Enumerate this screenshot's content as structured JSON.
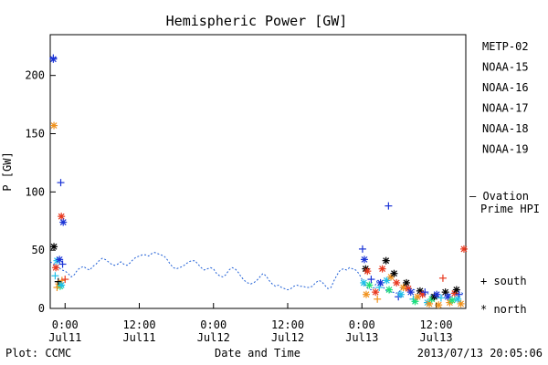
{
  "chart_data": {
    "type": "scatter",
    "title": "Hemispheric Power [GW]",
    "ylabel": "P [GW]",
    "xlabel": "Date and Time",
    "ylim": [
      0,
      235
    ],
    "yticks": [
      0,
      50,
      100,
      150,
      200
    ],
    "xlim_hours": [
      -2.4,
      64.8
    ],
    "xticks": [
      {
        "hour": 0,
        "line1": "0:00",
        "line2": "Jul11"
      },
      {
        "hour": 12,
        "line1": "12:00",
        "line2": "Jul11"
      },
      {
        "hour": 24,
        "line1": "0:00",
        "line2": "Jul12"
      },
      {
        "hour": 36,
        "line1": "12:00",
        "line2": "Jul12"
      },
      {
        "hour": 48,
        "line1": "0:00",
        "line2": "Jul13"
      },
      {
        "hour": 60,
        "line1": "12:00",
        "line2": "Jul13"
      }
    ],
    "satellites": [
      {
        "name": "METP-02",
        "color": "#000000"
      },
      {
        "name": "NOAA-15",
        "color": "#1a33d6"
      },
      {
        "name": "NOAA-16",
        "color": "#1fbfe8"
      },
      {
        "name": "NOAA-17",
        "color": "#1fe07a"
      },
      {
        "name": "NOAA-18",
        "color": "#f0921e"
      },
      {
        "name": "NOAA-19",
        "color": "#e8381e"
      }
    ],
    "model": {
      "name_line1": "— Ovation",
      "name_line2": "Prime HPI",
      "color": "#1f5fd6"
    },
    "marker_legend": {
      "south": "+  south",
      "north": "*  north"
    },
    "model_series": [
      [
        -2.4,
        40
      ],
      [
        -1.5,
        37
      ],
      [
        -0.5,
        33
      ],
      [
        0,
        32
      ],
      [
        0.5,
        30
      ],
      [
        1,
        27
      ],
      [
        1.5,
        29
      ],
      [
        2,
        33
      ],
      [
        2.5,
        35
      ],
      [
        3,
        36
      ],
      [
        3.5,
        34
      ],
      [
        4,
        33
      ],
      [
        4.5,
        36
      ],
      [
        5,
        38
      ],
      [
        5.5,
        41
      ],
      [
        6,
        43
      ],
      [
        6.5,
        42
      ],
      [
        7,
        40
      ],
      [
        7.5,
        38
      ],
      [
        8,
        37
      ],
      [
        8.5,
        38
      ],
      [
        9,
        40
      ],
      [
        9.5,
        38
      ],
      [
        10,
        37
      ],
      [
        10.5,
        39
      ],
      [
        11,
        42
      ],
      [
        11.5,
        44
      ],
      [
        12,
        45
      ],
      [
        12.5,
        46
      ],
      [
        13,
        46
      ],
      [
        13.5,
        45
      ],
      [
        14,
        47
      ],
      [
        14.5,
        48
      ],
      [
        15,
        47
      ],
      [
        15.5,
        46
      ],
      [
        16,
        45
      ],
      [
        16.5,
        42
      ],
      [
        17,
        38
      ],
      [
        17.5,
        35
      ],
      [
        18,
        34
      ],
      [
        18.5,
        35
      ],
      [
        19,
        36
      ],
      [
        19.5,
        38
      ],
      [
        20,
        40
      ],
      [
        20.5,
        41
      ],
      [
        21,
        41
      ],
      [
        21.5,
        38
      ],
      [
        22,
        35
      ],
      [
        22.5,
        33
      ],
      [
        23,
        34
      ],
      [
        23.5,
        35
      ],
      [
        24,
        34
      ],
      [
        24.5,
        30
      ],
      [
        25,
        28
      ],
      [
        25.5,
        27
      ],
      [
        26,
        29
      ],
      [
        26.5,
        33
      ],
      [
        27,
        35
      ],
      [
        27.5,
        34
      ],
      [
        28,
        31
      ],
      [
        28.5,
        27
      ],
      [
        29,
        24
      ],
      [
        29.5,
        22
      ],
      [
        30,
        21
      ],
      [
        30.5,
        22
      ],
      [
        31,
        24
      ],
      [
        31.5,
        27
      ],
      [
        32,
        30
      ],
      [
        32.5,
        28
      ],
      [
        33,
        24
      ],
      [
        33.5,
        21
      ],
      [
        34,
        19
      ],
      [
        34.5,
        20
      ],
      [
        35,
        18
      ],
      [
        35.5,
        17
      ],
      [
        36,
        16
      ],
      [
        36.5,
        17
      ],
      [
        37,
        19
      ],
      [
        37.5,
        20
      ],
      [
        38,
        19
      ],
      [
        38.5,
        19
      ],
      [
        39,
        18
      ],
      [
        39.5,
        18
      ],
      [
        40,
        19
      ],
      [
        40.5,
        22
      ],
      [
        41,
        24
      ],
      [
        41.5,
        23
      ],
      [
        42,
        20
      ],
      [
        42.5,
        17
      ],
      [
        43,
        18
      ],
      [
        43.5,
        24
      ],
      [
        44,
        29
      ],
      [
        44.5,
        33
      ],
      [
        45,
        34
      ],
      [
        45.5,
        33
      ],
      [
        46,
        35
      ],
      [
        46.5,
        34
      ],
      [
        47,
        33
      ],
      [
        47.5,
        30
      ],
      [
        48,
        25
      ],
      [
        48.5,
        20
      ],
      [
        49,
        17
      ],
      [
        49.5,
        16
      ],
      [
        50,
        18
      ],
      [
        50.5,
        24
      ],
      [
        51,
        22
      ],
      [
        51.5,
        18
      ],
      [
        52,
        15
      ],
      [
        52.5,
        14
      ],
      [
        53,
        14
      ],
      [
        53.5,
        13
      ],
      [
        54,
        14
      ],
      [
        54.5,
        18
      ],
      [
        55,
        20
      ],
      [
        55.5,
        18
      ],
      [
        56,
        17
      ],
      [
        56.5,
        16
      ],
      [
        57,
        15
      ],
      [
        57.5,
        14
      ],
      [
        58,
        13
      ],
      [
        58.5,
        13
      ],
      [
        59,
        12
      ],
      [
        59.5,
        11
      ],
      [
        60,
        11
      ],
      [
        60.5,
        10
      ],
      [
        61,
        11
      ],
      [
        61.5,
        12
      ],
      [
        62,
        12
      ],
      [
        62.5,
        13
      ],
      [
        63,
        14
      ],
      [
        63.5,
        13
      ],
      [
        64,
        14
      ],
      [
        64.5,
        12
      ]
    ],
    "points": [
      {
        "sat": "NOAA-15",
        "m": "*",
        "h": -1.9,
        "v": 214
      },
      {
        "sat": "NOAA-15",
        "m": "+",
        "h": -1.9,
        "v": 215
      },
      {
        "sat": "NOAA-18",
        "m": "*",
        "h": -1.8,
        "v": 157
      },
      {
        "sat": "NOAA-15",
        "m": "+",
        "h": -0.7,
        "v": 108
      },
      {
        "sat": "NOAA-19",
        "m": "*",
        "h": -0.6,
        "v": 79
      },
      {
        "sat": "NOAA-15",
        "m": "*",
        "h": -0.3,
        "v": 74
      },
      {
        "sat": "METP-02",
        "m": "*",
        "h": -1.8,
        "v": 53
      },
      {
        "sat": "NOAA-19",
        "m": "*",
        "h": -1.5,
        "v": 35
      },
      {
        "sat": "NOAA-16",
        "m": "*",
        "h": -1.3,
        "v": 41
      },
      {
        "sat": "NOAA-15",
        "m": "*",
        "h": -0.9,
        "v": 42
      },
      {
        "sat": "NOAA-18",
        "m": "*",
        "h": -1.0,
        "v": 21
      },
      {
        "sat": "NOAA-17",
        "m": "*",
        "h": -0.8,
        "v": 19
      },
      {
        "sat": "METP-02",
        "m": "+",
        "h": -1.1,
        "v": 23
      },
      {
        "sat": "NOAA-18",
        "m": "+",
        "h": -0.5,
        "v": 24
      },
      {
        "sat": "NOAA-19",
        "m": "+",
        "h": 0.0,
        "v": 25
      },
      {
        "sat": "NOAA-16",
        "m": "+",
        "h": -1.6,
        "v": 28
      },
      {
        "sat": "NOAA-15",
        "m": "+",
        "h": -0.4,
        "v": 38
      },
      {
        "sat": "NOAA-16",
        "m": "*",
        "h": -0.6,
        "v": 20
      },
      {
        "sat": "NOAA-18",
        "m": "+",
        "h": -1.3,
        "v": 18
      },
      {
        "sat": "NOAA-15",
        "m": "+",
        "h": 48.1,
        "v": 51
      },
      {
        "sat": "NOAA-15",
        "m": "*",
        "h": 48.4,
        "v": 42
      },
      {
        "sat": "METP-02",
        "m": "*",
        "h": 48.6,
        "v": 34
      },
      {
        "sat": "NOAA-19",
        "m": "*",
        "h": 48.9,
        "v": 32
      },
      {
        "sat": "NOAA-16",
        "m": "*",
        "h": 48.3,
        "v": 22
      },
      {
        "sat": "NOAA-18",
        "m": "*",
        "h": 48.7,
        "v": 12
      },
      {
        "sat": "NOAA-17",
        "m": "*",
        "h": 49.2,
        "v": 20
      },
      {
        "sat": "NOAA-15",
        "m": "+",
        "h": 49.5,
        "v": 25
      },
      {
        "sat": "NOAA-19",
        "m": "*",
        "h": 50.2,
        "v": 14
      },
      {
        "sat": "NOAA-18",
        "m": "+",
        "h": 50.5,
        "v": 8
      },
      {
        "sat": "NOAA-16",
        "m": "+",
        "h": 50.8,
        "v": 18
      },
      {
        "sat": "NOAA-15",
        "m": "*",
        "h": 51.0,
        "v": 22
      },
      {
        "sat": "NOAA-19",
        "m": "*",
        "h": 51.3,
        "v": 34
      },
      {
        "sat": "METP-02",
        "m": "*",
        "h": 51.9,
        "v": 41
      },
      {
        "sat": "NOAA-15",
        "m": "+",
        "h": 52.3,
        "v": 88
      },
      {
        "sat": "NOAA-16",
        "m": "*",
        "h": 52.0,
        "v": 24
      },
      {
        "sat": "NOAA-17",
        "m": "*",
        "h": 52.4,
        "v": 16
      },
      {
        "sat": "NOAA-18",
        "m": "*",
        "h": 52.7,
        "v": 27
      },
      {
        "sat": "METP-02",
        "m": "*",
        "h": 53.2,
        "v": 30
      },
      {
        "sat": "NOAA-19",
        "m": "*",
        "h": 53.6,
        "v": 22
      },
      {
        "sat": "NOAA-15",
        "m": "+",
        "h": 53.9,
        "v": 10
      },
      {
        "sat": "NOAA-16",
        "m": "*",
        "h": 54.3,
        "v": 12
      },
      {
        "sat": "NOAA-18",
        "m": "*",
        "h": 54.7,
        "v": 18
      },
      {
        "sat": "METP-02",
        "m": "*",
        "h": 55.2,
        "v": 22
      },
      {
        "sat": "NOAA-19",
        "m": "*",
        "h": 55.5,
        "v": 17
      },
      {
        "sat": "NOAA-15",
        "m": "*",
        "h": 55.9,
        "v": 14
      },
      {
        "sat": "NOAA-16",
        "m": "+",
        "h": 56.3,
        "v": 8
      },
      {
        "sat": "NOAA-17",
        "m": "*",
        "h": 56.6,
        "v": 6
      },
      {
        "sat": "NOAA-18",
        "m": "*",
        "h": 57.0,
        "v": 10
      },
      {
        "sat": "METP-02",
        "m": "*",
        "h": 57.4,
        "v": 15
      },
      {
        "sat": "NOAA-19",
        "m": "*",
        "h": 57.8,
        "v": 12
      },
      {
        "sat": "NOAA-15",
        "m": "+",
        "h": 58.2,
        "v": 14
      },
      {
        "sat": "NOAA-16",
        "m": "*",
        "h": 58.6,
        "v": 5
      },
      {
        "sat": "NOAA-18",
        "m": "*",
        "h": 58.9,
        "v": 4
      },
      {
        "sat": "NOAA-17",
        "m": "*",
        "h": 59.3,
        "v": 8
      },
      {
        "sat": "METP-02",
        "m": "*",
        "h": 59.7,
        "v": 10
      },
      {
        "sat": "NOAA-15",
        "m": "*",
        "h": 60.1,
        "v": 12
      },
      {
        "sat": "NOAA-18",
        "m": "*",
        "h": 60.4,
        "v": 3
      },
      {
        "sat": "NOAA-16",
        "m": "+",
        "h": 60.8,
        "v": 9
      },
      {
        "sat": "NOAA-19",
        "m": "+",
        "h": 61.1,
        "v": 26
      },
      {
        "sat": "METP-02",
        "m": "*",
        "h": 61.5,
        "v": 14
      },
      {
        "sat": "NOAA-15",
        "m": "*",
        "h": 61.9,
        "v": 10
      },
      {
        "sat": "NOAA-18",
        "m": "*",
        "h": 62.2,
        "v": 5
      },
      {
        "sat": "NOAA-17",
        "m": "*",
        "h": 62.6,
        "v": 7
      },
      {
        "sat": "NOAA-19",
        "m": "*",
        "h": 63.0,
        "v": 13
      },
      {
        "sat": "METP-02",
        "m": "*",
        "h": 63.3,
        "v": 16
      },
      {
        "sat": "NOAA-15",
        "m": "+",
        "h": 63.7,
        "v": 12
      },
      {
        "sat": "NOAA-18",
        "m": "*",
        "h": 64.0,
        "v": 4
      },
      {
        "sat": "NOAA-16",
        "m": "*",
        "h": 63.5,
        "v": 8
      },
      {
        "sat": "NOAA-19",
        "m": "*",
        "h": 64.5,
        "v": 51
      }
    ]
  },
  "footer": {
    "left": "Plot: CCMC",
    "right": "2013/07/13 20:05:06"
  }
}
